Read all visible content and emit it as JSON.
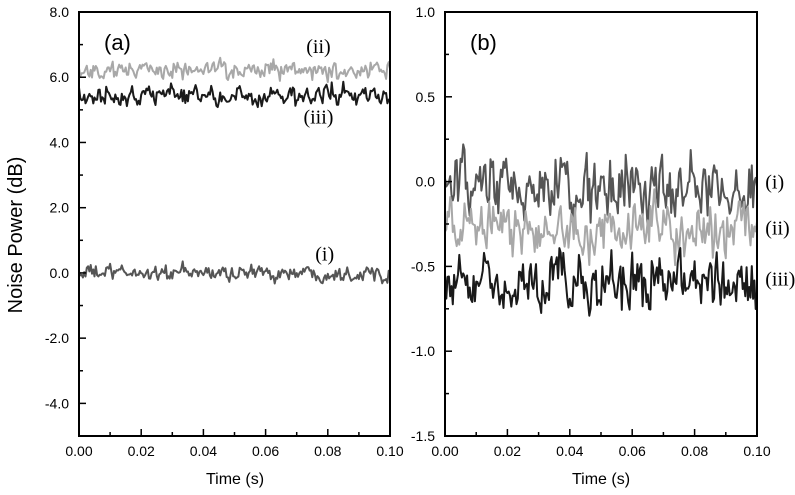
{
  "chart_data": [
    {
      "type": "line",
      "panel_label": "(a)",
      "ylabel": "Noise Power (dB)",
      "xlabel": "Time (s)",
      "xlim": [
        0.0,
        0.1
      ],
      "ylim": [
        -5.0,
        8.0
      ],
      "xticks": [
        "0.00",
        "0.02",
        "0.04",
        "0.06",
        "0.08",
        "0.10"
      ],
      "yticks": [
        "-4.0",
        "-2.0",
        "0.0",
        "2.0",
        "4.0",
        "6.0",
        "8.0"
      ],
      "grid": false,
      "series": [
        {
          "label": "(i)",
          "color": "#555555",
          "mean": 0.0,
          "noise": 0.18,
          "label_x": 0.079,
          "label_y": 0.6
        },
        {
          "label": "(ii)",
          "color": "#a8a8a8",
          "mean": 6.2,
          "noise": 0.22,
          "label_x": 0.077,
          "label_y": 6.95
        },
        {
          "label": "(iii)",
          "color": "#1a1a1a",
          "mean": 5.45,
          "noise": 0.25,
          "label_x": 0.077,
          "label_y": 4.8
        }
      ]
    },
    {
      "type": "line",
      "panel_label": "(b)",
      "ylabel": "",
      "xlabel": "Time (s)",
      "xlim": [
        0.0,
        0.1
      ],
      "ylim": [
        -1.5,
        1.0
      ],
      "xticks": [
        "0.00",
        "0.02",
        "0.04",
        "0.06",
        "0.08",
        "0.10"
      ],
      "yticks": [
        "-1.5",
        "-1.0",
        "-0.5",
        "0.0",
        "0.5",
        "1.0"
      ],
      "grid": false,
      "series": [
        {
          "label": "(i)",
          "color": "#555555",
          "mean": -0.05,
          "noise": 0.14,
          "label_x": 0.102,
          "label_y": 0.0
        },
        {
          "label": "(ii)",
          "color": "#a8a8a8",
          "mean": -0.28,
          "noise": 0.11,
          "label_x": 0.102,
          "label_y": -0.27
        },
        {
          "label": "(iii)",
          "color": "#1a1a1a",
          "mean": -0.6,
          "noise": 0.12,
          "label_x": 0.102,
          "label_y": -0.57
        }
      ]
    }
  ]
}
